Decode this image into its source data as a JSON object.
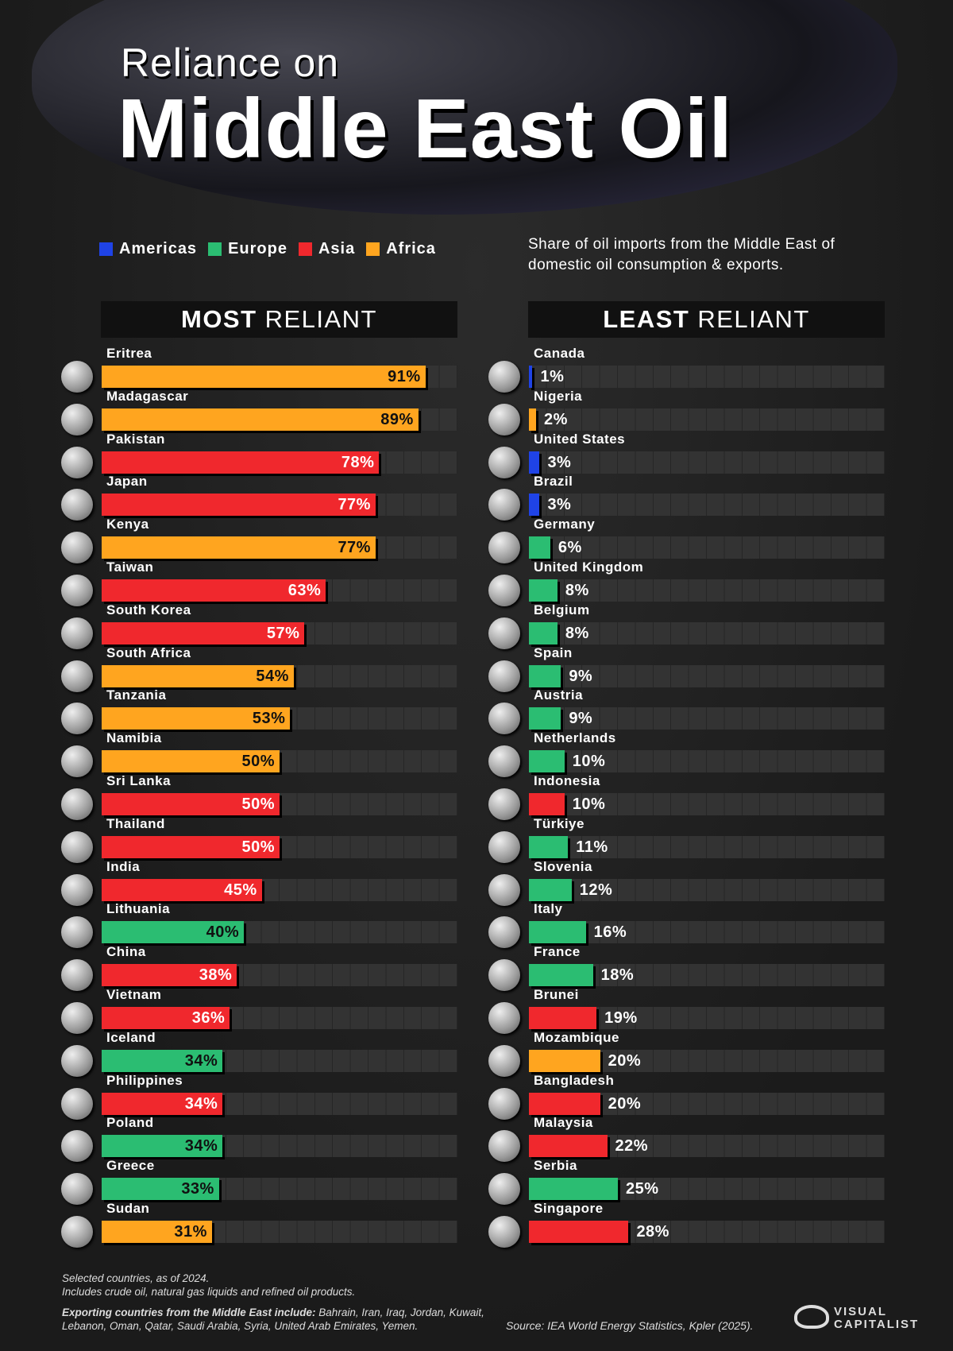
{
  "header": {
    "kicker": "Reliance on",
    "title": "Middle East Oil",
    "subtitle": "Share of oil imports from the Middle East of domestic oil consumption & exports."
  },
  "legend": [
    {
      "name": "Americas",
      "color": "#1f43e6"
    },
    {
      "name": "Europe",
      "color": "#2bbd72"
    },
    {
      "name": "Asia",
      "color": "#f0282d"
    },
    {
      "name": "Africa",
      "color": "#ffa51f"
    }
  ],
  "chart_data": [
    {
      "type": "bar",
      "orientation": "horizontal",
      "title_strong": "MOST",
      "title_rest": "RELIANT",
      "label_position": "inside",
      "xlim": [
        0,
        100
      ],
      "categories": [
        "Eritrea",
        "Madagascar",
        "Pakistan",
        "Japan",
        "Kenya",
        "Taiwan",
        "South Korea",
        "South Africa",
        "Tanzania",
        "Namibia",
        "Sri Lanka",
        "Thailand",
        "India",
        "Lithuania",
        "China",
        "Vietnam",
        "Iceland",
        "Philippines",
        "Poland",
        "Greece",
        "Sudan"
      ],
      "values": [
        91,
        89,
        78,
        77,
        77,
        63,
        57,
        54,
        53,
        50,
        50,
        50,
        45,
        40,
        38,
        36,
        34,
        34,
        34,
        33,
        31
      ],
      "value_labels": [
        "91%",
        "89%",
        "78%",
        "77%",
        "77%",
        "63%",
        "57%",
        "54%",
        "53%",
        "50%",
        "50%",
        "50%",
        "45%",
        "40%",
        "38%",
        "36%",
        "34%",
        "34%",
        "34%",
        "33%",
        "31%"
      ],
      "colors": [
        "#ffa51f",
        "#ffa51f",
        "#f0282d",
        "#f0282d",
        "#ffa51f",
        "#f0282d",
        "#f0282d",
        "#ffa51f",
        "#ffa51f",
        "#ffa51f",
        "#f0282d",
        "#f0282d",
        "#f0282d",
        "#2bbd72",
        "#f0282d",
        "#f0282d",
        "#2bbd72",
        "#f0282d",
        "#2bbd72",
        "#2bbd72",
        "#ffa51f"
      ]
    },
    {
      "type": "bar",
      "orientation": "horizontal",
      "title_strong": "LEAST",
      "title_rest": "RELIANT",
      "label_position": "outside",
      "xlim": [
        0,
        100
      ],
      "categories": [
        "Canada",
        "Nigeria",
        "United States",
        "Brazil",
        "Germany",
        "United Kingdom",
        "Belgium",
        "Spain",
        "Austria",
        "Netherlands",
        "Indonesia",
        "Türkiye",
        "Slovenia",
        "Italy",
        "France",
        "Brunei",
        "Mozambique",
        "Bangladesh",
        "Malaysia",
        "Serbia",
        "Singapore"
      ],
      "values": [
        1,
        2,
        3,
        3,
        6,
        8,
        8,
        9,
        9,
        10,
        10,
        11,
        12,
        16,
        18,
        19,
        20,
        20,
        22,
        25,
        28
      ],
      "value_labels": [
        "1%",
        "2%",
        "3%",
        "3%",
        "6%",
        "8%",
        "8%",
        "9%",
        "9%",
        "10%",
        "10%",
        "11%",
        "12%",
        "16%",
        "18%",
        "19%",
        "20%",
        "20%",
        "22%",
        "25%",
        "28%"
      ],
      "colors": [
        "#1f43e6",
        "#ffa51f",
        "#1f43e6",
        "#1f43e6",
        "#2bbd72",
        "#2bbd72",
        "#2bbd72",
        "#2bbd72",
        "#2bbd72",
        "#2bbd72",
        "#f0282d",
        "#2bbd72",
        "#2bbd72",
        "#2bbd72",
        "#2bbd72",
        "#f0282d",
        "#ffa51f",
        "#f0282d",
        "#f0282d",
        "#2bbd72",
        "#f0282d"
      ]
    }
  ],
  "notes": [
    "Selected countries, as of 2024.",
    "Includes crude oil, natural gas liquids and refined oil products."
  ],
  "exporters_label": "Exporting countries from the Middle East include:",
  "exporters": "Bahrain, Iran, Iraq, Jordan, Kuwait, Lebanon, Oman, Qatar, Saudi Arabia, Syria, United Arab Emirates, Yemen.",
  "source": "Source: IEA World Energy Statistics, Kpler (2025).",
  "logo": "VISUAL CAPITALIST"
}
